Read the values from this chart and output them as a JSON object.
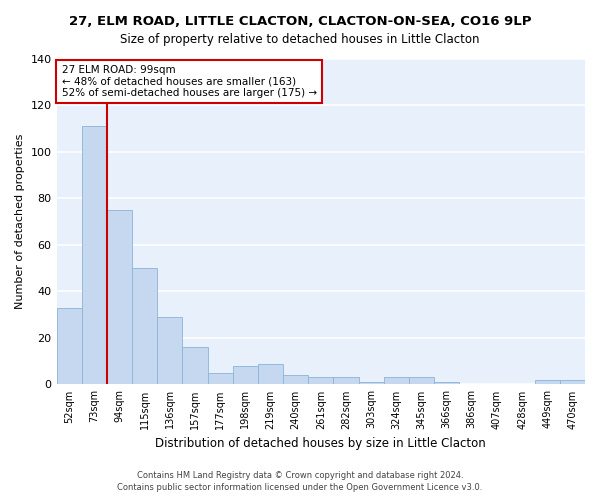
{
  "title": "27, ELM ROAD, LITTLE CLACTON, CLACTON-ON-SEA, CO16 9LP",
  "subtitle": "Size of property relative to detached houses in Little Clacton",
  "xlabel": "Distribution of detached houses by size in Little Clacton",
  "ylabel": "Number of detached properties",
  "categories": [
    "52sqm",
    "73sqm",
    "94sqm",
    "115sqm",
    "136sqm",
    "157sqm",
    "177sqm",
    "198sqm",
    "219sqm",
    "240sqm",
    "261sqm",
    "282sqm",
    "303sqm",
    "324sqm",
    "345sqm",
    "366sqm",
    "386sqm",
    "407sqm",
    "428sqm",
    "449sqm",
    "470sqm"
  ],
  "values": [
    33,
    111,
    75,
    50,
    29,
    16,
    5,
    8,
    9,
    4,
    3,
    3,
    1,
    3,
    3,
    1,
    0,
    0,
    0,
    2,
    2
  ],
  "bar_color": "#c5d8f0",
  "bar_edge_color": "#8ab4d8",
  "background_color": "#e8f0fb",
  "grid_color": "#ffffff",
  "redline_index": 2,
  "redline_color": "#cc0000",
  "annotation_text": "27 ELM ROAD: 99sqm\n← 48% of detached houses are smaller (163)\n52% of semi-detached houses are larger (175) →",
  "annotation_box_color": "#ffffff",
  "annotation_box_edge_color": "#cc0000",
  "footer_line1": "Contains HM Land Registry data © Crown copyright and database right 2024.",
  "footer_line2": "Contains public sector information licensed under the Open Government Licence v3.0.",
  "ylim": [
    0,
    140
  ],
  "yticks": [
    0,
    20,
    40,
    60,
    80,
    100,
    120,
    140
  ]
}
